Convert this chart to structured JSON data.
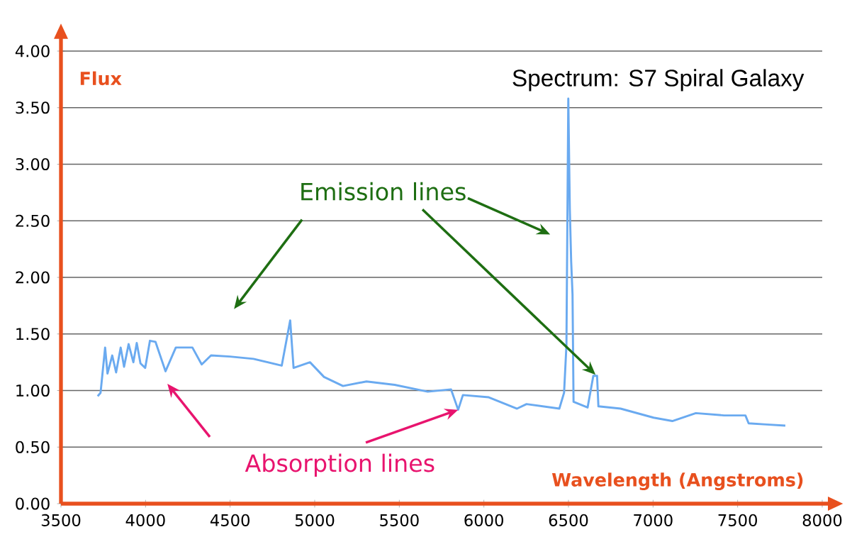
{
  "chart_data": {
    "type": "line",
    "title": "Spectrum: S7 Spiral Galaxy",
    "xlabel": "Wavelength (Angstroms)",
    "ylabel": "Flux",
    "annotations": [
      {
        "text": "Emission lines",
        "x": 6660,
        "y": 1.14
      },
      {
        "text": "Absorption lines",
        "x": 5848,
        "y": 0.83
      }
    ],
    "xlim": [
      3500,
      8000
    ],
    "ylim": [
      0,
      4
    ],
    "xticks": [
      3500,
      4000,
      4500,
      5000,
      5500,
      6000,
      6500,
      7000,
      7500,
      8000
    ],
    "yticks": [
      {
        "value": 0,
        "label": "0.00"
      },
      {
        "value": 0.5,
        "label": "0.50"
      },
      {
        "value": 1,
        "label": "1.00"
      },
      {
        "value": 1.5,
        "label": "1.50"
      },
      {
        "value": 2,
        "label": "2.00"
      },
      {
        "value": 2.5,
        "label": "2.50"
      },
      {
        "value": 3,
        "label": "3.00"
      },
      {
        "value": 3.5,
        "label": "3.50"
      },
      {
        "value": 4,
        "label": "4.00"
      }
    ],
    "grid": "y",
    "series": [
      {
        "color": "#6aaaf0",
        "x": [
          3717,
          3734,
          3761,
          3775,
          3803,
          3826,
          3853,
          3873,
          3900,
          3928,
          3948,
          3970,
          3998,
          4026,
          4059,
          4118,
          4179,
          4277,
          4332,
          4387,
          4499,
          4638,
          4805,
          4855,
          4875,
          4972,
          5055,
          5167,
          5306,
          5473,
          5668,
          5806,
          5848,
          5876,
          6029,
          6196,
          6252,
          6446,
          6474,
          6488,
          6499,
          6508,
          6516,
          6524,
          6530,
          6613,
          6647,
          6669,
          6677,
          6808,
          7003,
          7114,
          7253,
          7420,
          7546,
          7565,
          7671,
          7782
        ],
        "values": [
          0.95,
          0.98,
          1.38,
          1.15,
          1.31,
          1.16,
          1.38,
          1.21,
          1.41,
          1.25,
          1.42,
          1.24,
          1.2,
          1.44,
          1.43,
          1.17,
          1.38,
          1.38,
          1.23,
          1.31,
          1.3,
          1.28,
          1.22,
          1.62,
          1.2,
          1.25,
          1.12,
          1.04,
          1.08,
          1.05,
          0.99,
          1.01,
          0.83,
          0.96,
          0.94,
          0.84,
          0.88,
          0.84,
          0.98,
          1.4,
          3.58,
          2.6,
          2.14,
          1.85,
          0.9,
          0.85,
          1.13,
          1.13,
          0.86,
          0.84,
          0.76,
          0.73,
          0.8,
          0.78,
          0.78,
          0.71,
          0.7,
          0.69
        ]
      }
    ]
  }
}
